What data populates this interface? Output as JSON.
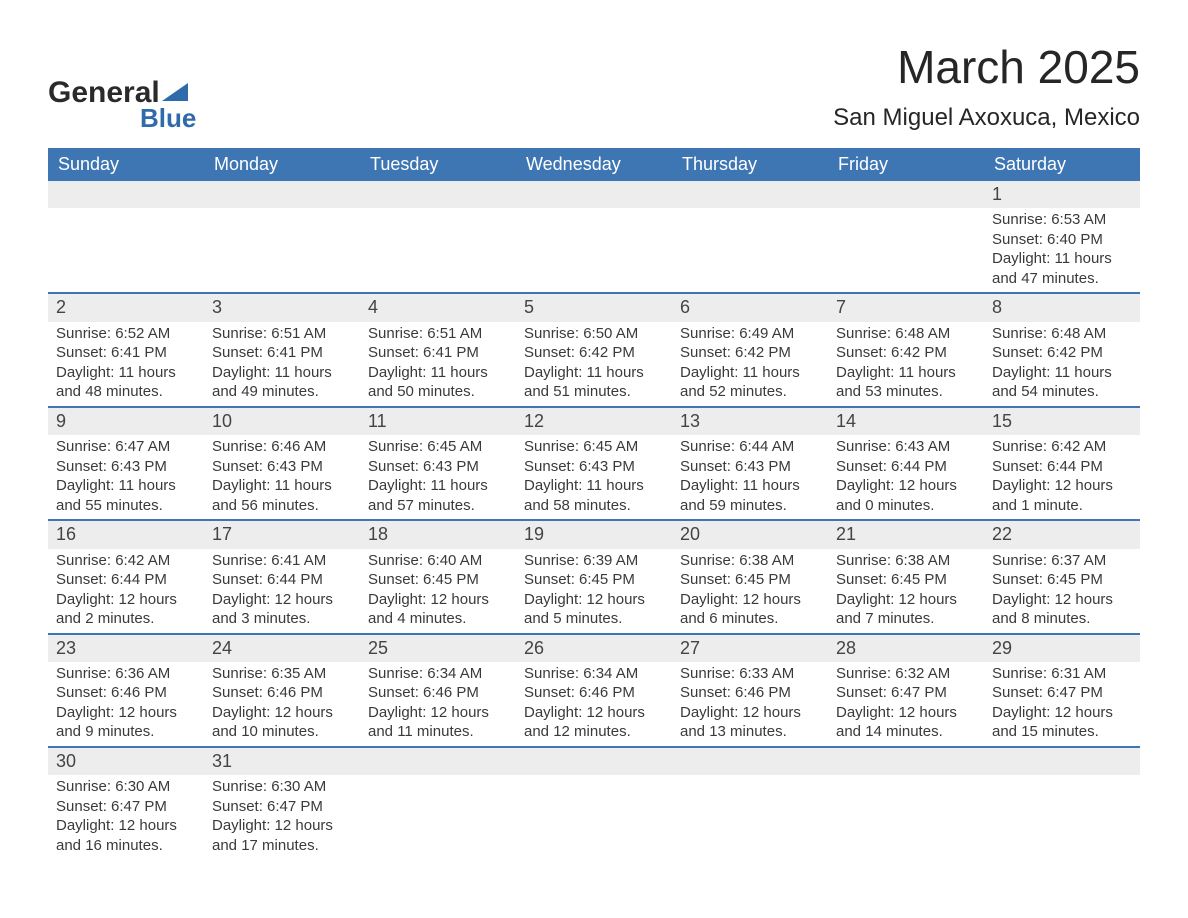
{
  "logo": {
    "word1": "General",
    "word2": "Blue"
  },
  "title": "March 2025",
  "subtitle": "San Miguel Axoxuca, Mexico",
  "colors": {
    "header_bg": "#3d76b3",
    "header_text": "#ffffff",
    "row_separator": "#3d76b3",
    "daynum_bg": "#ededed",
    "body_text": "#3a3a3a",
    "logo_blue": "#2f6bab",
    "background": "#ffffff"
  },
  "typography": {
    "title_fontsize": 46,
    "subtitle_fontsize": 24,
    "header_fontsize": 18,
    "daynum_fontsize": 18,
    "body_fontsize": 15,
    "font_family": "Arial"
  },
  "calendar": {
    "type": "table",
    "columns": [
      "Sunday",
      "Monday",
      "Tuesday",
      "Wednesday",
      "Thursday",
      "Friday",
      "Saturday"
    ],
    "weeks": [
      [
        null,
        null,
        null,
        null,
        null,
        null,
        {
          "n": "1",
          "sunrise": "Sunrise: 6:53 AM",
          "sunset": "Sunset: 6:40 PM",
          "daylight": "Daylight: 11 hours and 47 minutes."
        }
      ],
      [
        {
          "n": "2",
          "sunrise": "Sunrise: 6:52 AM",
          "sunset": "Sunset: 6:41 PM",
          "daylight": "Daylight: 11 hours and 48 minutes."
        },
        {
          "n": "3",
          "sunrise": "Sunrise: 6:51 AM",
          "sunset": "Sunset: 6:41 PM",
          "daylight": "Daylight: 11 hours and 49 minutes."
        },
        {
          "n": "4",
          "sunrise": "Sunrise: 6:51 AM",
          "sunset": "Sunset: 6:41 PM",
          "daylight": "Daylight: 11 hours and 50 minutes."
        },
        {
          "n": "5",
          "sunrise": "Sunrise: 6:50 AM",
          "sunset": "Sunset: 6:42 PM",
          "daylight": "Daylight: 11 hours and 51 minutes."
        },
        {
          "n": "6",
          "sunrise": "Sunrise: 6:49 AM",
          "sunset": "Sunset: 6:42 PM",
          "daylight": "Daylight: 11 hours and 52 minutes."
        },
        {
          "n": "7",
          "sunrise": "Sunrise: 6:48 AM",
          "sunset": "Sunset: 6:42 PM",
          "daylight": "Daylight: 11 hours and 53 minutes."
        },
        {
          "n": "8",
          "sunrise": "Sunrise: 6:48 AM",
          "sunset": "Sunset: 6:42 PM",
          "daylight": "Daylight: 11 hours and 54 minutes."
        }
      ],
      [
        {
          "n": "9",
          "sunrise": "Sunrise: 6:47 AM",
          "sunset": "Sunset: 6:43 PM",
          "daylight": "Daylight: 11 hours and 55 minutes."
        },
        {
          "n": "10",
          "sunrise": "Sunrise: 6:46 AM",
          "sunset": "Sunset: 6:43 PM",
          "daylight": "Daylight: 11 hours and 56 minutes."
        },
        {
          "n": "11",
          "sunrise": "Sunrise: 6:45 AM",
          "sunset": "Sunset: 6:43 PM",
          "daylight": "Daylight: 11 hours and 57 minutes."
        },
        {
          "n": "12",
          "sunrise": "Sunrise: 6:45 AM",
          "sunset": "Sunset: 6:43 PM",
          "daylight": "Daylight: 11 hours and 58 minutes."
        },
        {
          "n": "13",
          "sunrise": "Sunrise: 6:44 AM",
          "sunset": "Sunset: 6:43 PM",
          "daylight": "Daylight: 11 hours and 59 minutes."
        },
        {
          "n": "14",
          "sunrise": "Sunrise: 6:43 AM",
          "sunset": "Sunset: 6:44 PM",
          "daylight": "Daylight: 12 hours and 0 minutes."
        },
        {
          "n": "15",
          "sunrise": "Sunrise: 6:42 AM",
          "sunset": "Sunset: 6:44 PM",
          "daylight": "Daylight: 12 hours and 1 minute."
        }
      ],
      [
        {
          "n": "16",
          "sunrise": "Sunrise: 6:42 AM",
          "sunset": "Sunset: 6:44 PM",
          "daylight": "Daylight: 12 hours and 2 minutes."
        },
        {
          "n": "17",
          "sunrise": "Sunrise: 6:41 AM",
          "sunset": "Sunset: 6:44 PM",
          "daylight": "Daylight: 12 hours and 3 minutes."
        },
        {
          "n": "18",
          "sunrise": "Sunrise: 6:40 AM",
          "sunset": "Sunset: 6:45 PM",
          "daylight": "Daylight: 12 hours and 4 minutes."
        },
        {
          "n": "19",
          "sunrise": "Sunrise: 6:39 AM",
          "sunset": "Sunset: 6:45 PM",
          "daylight": "Daylight: 12 hours and 5 minutes."
        },
        {
          "n": "20",
          "sunrise": "Sunrise: 6:38 AM",
          "sunset": "Sunset: 6:45 PM",
          "daylight": "Daylight: 12 hours and 6 minutes."
        },
        {
          "n": "21",
          "sunrise": "Sunrise: 6:38 AM",
          "sunset": "Sunset: 6:45 PM",
          "daylight": "Daylight: 12 hours and 7 minutes."
        },
        {
          "n": "22",
          "sunrise": "Sunrise: 6:37 AM",
          "sunset": "Sunset: 6:45 PM",
          "daylight": "Daylight: 12 hours and 8 minutes."
        }
      ],
      [
        {
          "n": "23",
          "sunrise": "Sunrise: 6:36 AM",
          "sunset": "Sunset: 6:46 PM",
          "daylight": "Daylight: 12 hours and 9 minutes."
        },
        {
          "n": "24",
          "sunrise": "Sunrise: 6:35 AM",
          "sunset": "Sunset: 6:46 PM",
          "daylight": "Daylight: 12 hours and 10 minutes."
        },
        {
          "n": "25",
          "sunrise": "Sunrise: 6:34 AM",
          "sunset": "Sunset: 6:46 PM",
          "daylight": "Daylight: 12 hours and 11 minutes."
        },
        {
          "n": "26",
          "sunrise": "Sunrise: 6:34 AM",
          "sunset": "Sunset: 6:46 PM",
          "daylight": "Daylight: 12 hours and 12 minutes."
        },
        {
          "n": "27",
          "sunrise": "Sunrise: 6:33 AM",
          "sunset": "Sunset: 6:46 PM",
          "daylight": "Daylight: 12 hours and 13 minutes."
        },
        {
          "n": "28",
          "sunrise": "Sunrise: 6:32 AM",
          "sunset": "Sunset: 6:47 PM",
          "daylight": "Daylight: 12 hours and 14 minutes."
        },
        {
          "n": "29",
          "sunrise": "Sunrise: 6:31 AM",
          "sunset": "Sunset: 6:47 PM",
          "daylight": "Daylight: 12 hours and 15 minutes."
        }
      ],
      [
        {
          "n": "30",
          "sunrise": "Sunrise: 6:30 AM",
          "sunset": "Sunset: 6:47 PM",
          "daylight": "Daylight: 12 hours and 16 minutes."
        },
        {
          "n": "31",
          "sunrise": "Sunrise: 6:30 AM",
          "sunset": "Sunset: 6:47 PM",
          "daylight": "Daylight: 12 hours and 17 minutes."
        },
        null,
        null,
        null,
        null,
        null
      ]
    ]
  }
}
